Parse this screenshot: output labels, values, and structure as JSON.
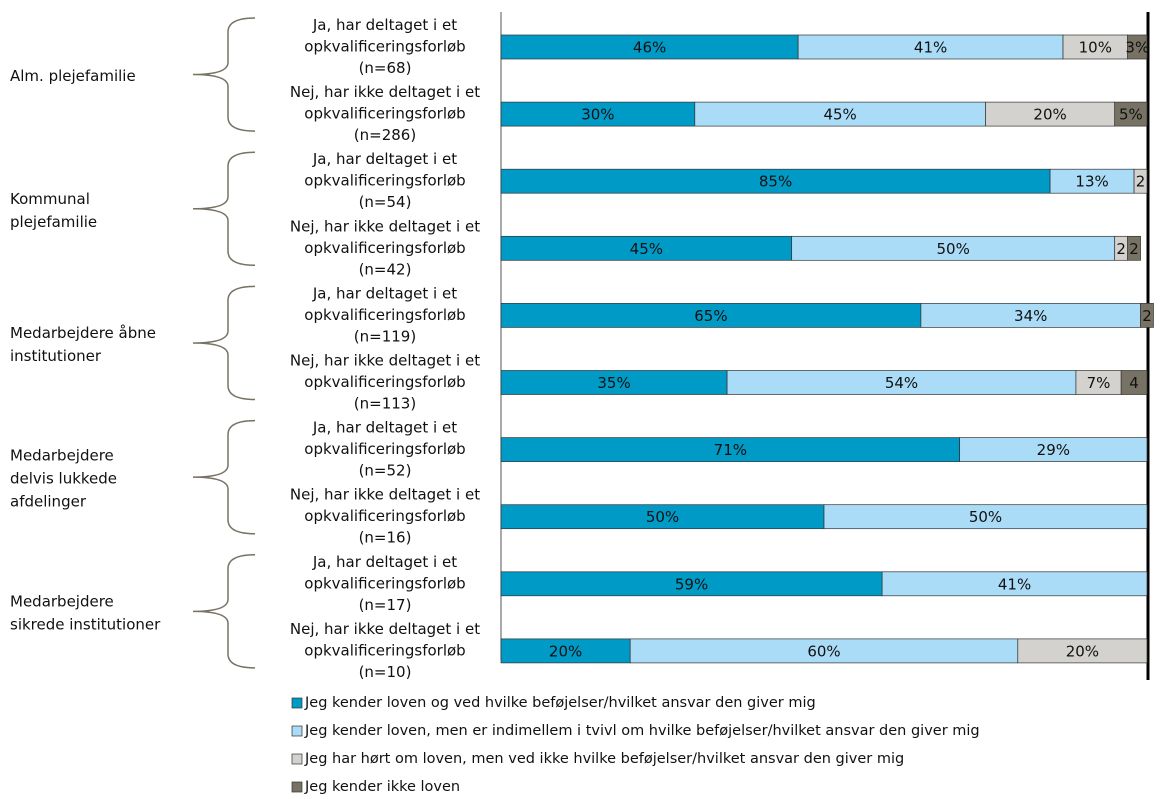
{
  "chart_data": {
    "type": "stacked-bar-horizontal",
    "xlim": [
      0,
      100
    ],
    "legend": "bottom",
    "groups": [
      {
        "label": [
          "Alm. plejefamilie"
        ],
        "rows": [
          0,
          1
        ]
      },
      {
        "label": [
          "Kommunal",
          "plejefamilie"
        ],
        "rows": [
          2,
          3
        ]
      },
      {
        "label": [
          "Medarbejdere åbne",
          "institutioner"
        ],
        "rows": [
          4,
          5
        ]
      },
      {
        "label": [
          "Medarbejdere",
          "delvis lukkede",
          "afdelinger"
        ],
        "rows": [
          6,
          7
        ]
      },
      {
        "label": [
          "Medarbejdere",
          "sikrede institutioner"
        ],
        "rows": [
          8,
          9
        ]
      }
    ],
    "categories": [
      [
        "Ja, har deltaget i et",
        "opkvalificeringsforløb",
        "(n=68)"
      ],
      [
        "Nej, har ikke deltaget i et",
        "opkvalificeringsforløb",
        "(n=286)"
      ],
      [
        "Ja, har deltaget i et",
        "opkvalificeringsforløb",
        "(n=54)"
      ],
      [
        "Nej, har ikke deltaget i et",
        "opkvalificeringsforløb",
        "(n=42)"
      ],
      [
        "Ja, har deltaget i et",
        "opkvalificeringsforløb",
        "(n=119)"
      ],
      [
        "Nej, har ikke deltaget i et",
        "opkvalificeringsforløb",
        "(n=113)"
      ],
      [
        "Ja, har deltaget i et",
        "opkvalificeringsforløb",
        "(n=52)"
      ],
      [
        "Nej, har ikke deltaget i et",
        "opkvalificeringsforløb",
        "(n=16)"
      ],
      [
        "Ja, har deltaget i et",
        "opkvalificeringsforløb",
        "(n=17)"
      ],
      [
        "Nej, har ikke deltaget i et",
        "opkvalificeringsforløb",
        "(n=10)"
      ]
    ],
    "series": [
      {
        "name": "Jeg kender loven og ved hvilke beføjelser/hvilket ansvar den giver mig",
        "color": "#009ac7",
        "values": [
          46,
          30,
          85,
          45,
          65,
          35,
          71,
          50,
          59,
          20
        ],
        "value_labels": [
          "46%",
          "30%",
          "85%",
          "45%",
          "65%",
          "35%",
          "71%",
          "50%",
          "59%",
          "20%"
        ]
      },
      {
        "name": "Jeg kender loven, men er indimellem i tvivl om hvilke beføjelser/hvilket ansvar den giver mig",
        "color": "#aadcf8",
        "values": [
          41,
          45,
          13,
          50,
          34,
          54,
          29,
          50,
          41,
          60
        ],
        "value_labels": [
          "41%",
          "45%",
          "13%",
          "50%",
          "34%",
          "54%",
          "29%",
          "50%",
          "41%",
          "60%"
        ]
      },
      {
        "name": "Jeg har hørt om loven, men ved ikke hvilke beføjelser/hvilket ansvar den giver mig",
        "color": "#d3d2ce",
        "values": [
          10,
          20,
          2,
          2,
          0,
          7,
          0,
          0,
          0,
          20
        ],
        "value_labels": [
          "10%",
          "20%",
          "2",
          "2",
          null,
          "7%",
          null,
          null,
          null,
          "20%"
        ]
      },
      {
        "name": "Jeg kender ikke loven",
        "color": "#777263",
        "values": [
          3,
          5,
          0,
          2,
          2,
          4,
          0,
          0,
          0,
          0
        ],
        "value_labels": [
          "3%",
          "5%",
          null,
          "2",
          "2",
          "4",
          null,
          null,
          null,
          null
        ]
      }
    ]
  }
}
